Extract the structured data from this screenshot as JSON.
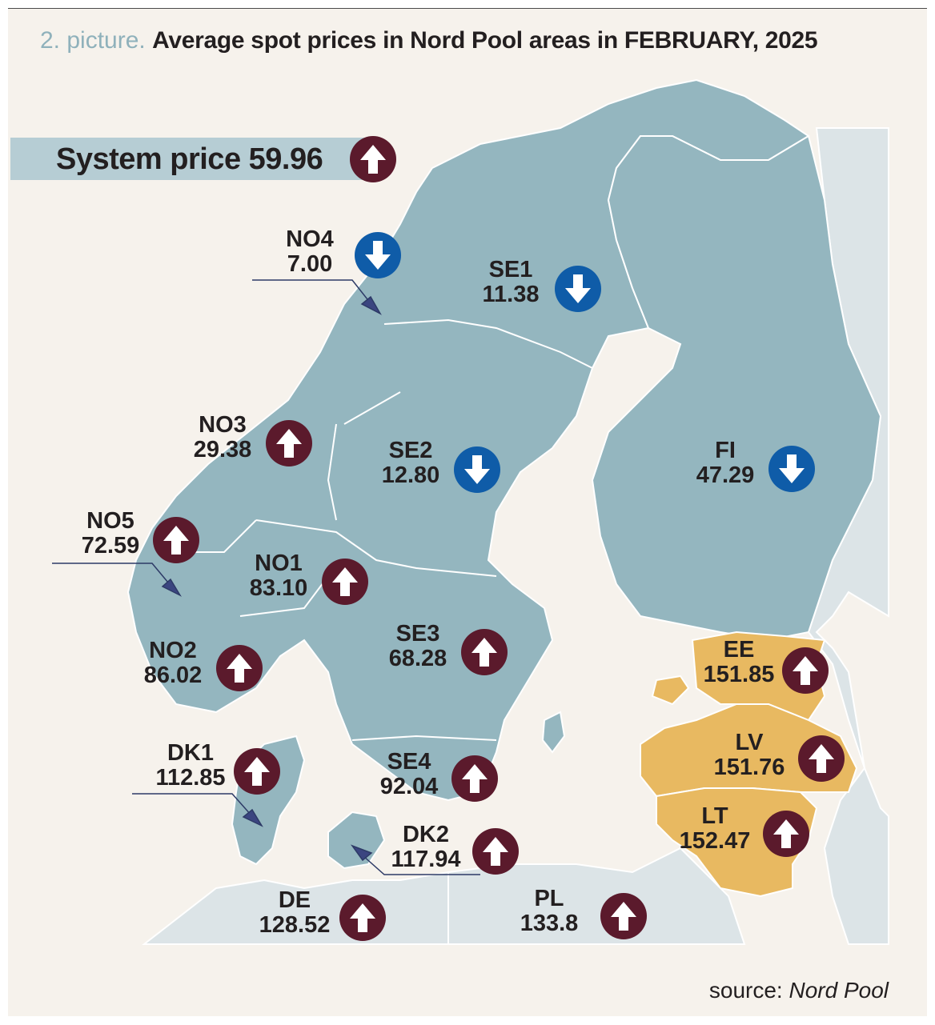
{
  "title": {
    "number": "2. picture.",
    "text": "Average spot prices in Nord Pool areas in FEBRUARY, 2025"
  },
  "system_price": {
    "label": "System price",
    "value": "59.96",
    "trend": "up"
  },
  "areas": [
    {
      "id": "NO4",
      "price": "7.00",
      "trend": "down"
    },
    {
      "id": "SE1",
      "price": "11.38",
      "trend": "down"
    },
    {
      "id": "NO3",
      "price": "29.38",
      "trend": "up"
    },
    {
      "id": "SE2",
      "price": "12.80",
      "trend": "down"
    },
    {
      "id": "FI",
      "price": "47.29",
      "trend": "down"
    },
    {
      "id": "NO5",
      "price": "72.59",
      "trend": "up"
    },
    {
      "id": "NO1",
      "price": "83.10",
      "trend": "up"
    },
    {
      "id": "SE3",
      "price": "68.28",
      "trend": "up"
    },
    {
      "id": "NO2",
      "price": "86.02",
      "trend": "up"
    },
    {
      "id": "EE",
      "price": "151.85",
      "trend": "up"
    },
    {
      "id": "DK1",
      "price": "112.85",
      "trend": "up"
    },
    {
      "id": "LV",
      "price": "151.76",
      "trend": "up"
    },
    {
      "id": "SE4",
      "price": "92.04",
      "trend": "up"
    },
    {
      "id": "LT",
      "price": "152.47",
      "trend": "up"
    },
    {
      "id": "DK2",
      "price": "117.94",
      "trend": "up"
    },
    {
      "id": "DE",
      "price": "128.52",
      "trend": "up"
    },
    {
      "id": "PL",
      "price": "133.8",
      "trend": "up"
    }
  ],
  "colors": {
    "nordic_land": "#94b6bf",
    "baltic_land": "#e8b961",
    "other_land": "#dce4e7",
    "sea": "#f6f2ec",
    "up_badge": "#5b1a2c",
    "down_badge": "#0f5ca8"
  },
  "icons": {
    "up": "arrow-up-icon",
    "down": "arrow-down-icon"
  },
  "source": {
    "prefix": "source:",
    "name": "Nord Pool"
  }
}
